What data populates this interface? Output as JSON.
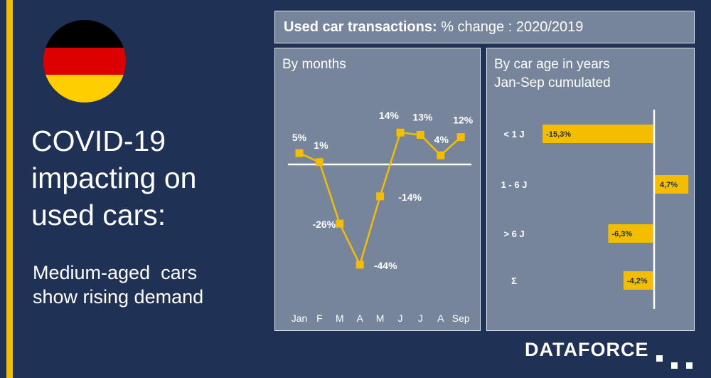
{
  "colors": {
    "background": "#1f3154",
    "accent": "#f5bd00",
    "panel": "#76859c",
    "white": "#ffffff",
    "flag": [
      "#000000",
      "#dd0000",
      "#ffce00"
    ]
  },
  "headline": {
    "title_lines": [
      "COVID-19",
      "impacting on",
      "used cars:"
    ],
    "subtitle_lines": [
      "Medium-aged  cars",
      "show rising demand"
    ]
  },
  "header": {
    "title_bold": "Used car transactions:",
    "title_rest": " % change : 2020/2019"
  },
  "brand": {
    "logo_text": "DATAFORCE"
  },
  "chart_data": [
    {
      "type": "line",
      "title": "By months",
      "categories": [
        "Jan",
        "F",
        "M",
        "A",
        "M",
        "J",
        "J",
        "A",
        "Sep"
      ],
      "series": [
        {
          "values": [
            5,
            1,
            -26,
            -44,
            -14,
            14,
            13,
            4,
            12
          ],
          "labels": [
            "5%",
            "1%",
            "-26%",
            "-44%",
            "-14%",
            "14%",
            "13%",
            "4%",
            "12%"
          ]
        }
      ],
      "ylim": [
        -50,
        20
      ],
      "zero_line": true,
      "grid": false
    },
    {
      "type": "bar",
      "orientation": "horizontal",
      "title": "By car age in years",
      "subtitle": "Jan-Sep cumulated",
      "categories": [
        "< 1 J",
        "1 - 6 J",
        "> 6 J",
        "Σ"
      ],
      "values": [
        -15.3,
        4.7,
        -6.3,
        -4.2
      ],
      "labels": [
        "-15,3%",
        "4,7%",
        "-6,3%",
        "-4,2%"
      ],
      "xlim": [
        -16,
        5
      ],
      "grid": false
    }
  ]
}
